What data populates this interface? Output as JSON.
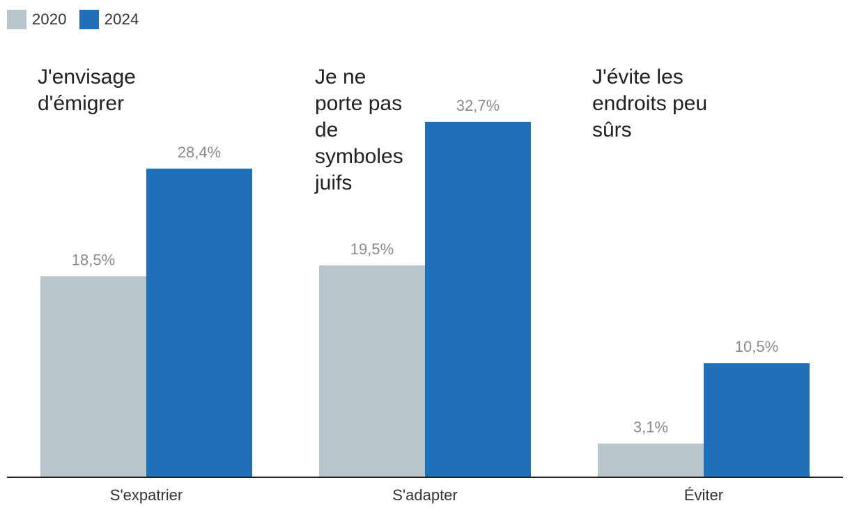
{
  "legend": {
    "items": [
      {
        "label": "2020",
        "color": "#b8c5ca"
      },
      {
        "label": "2024",
        "color": "#206fb9"
      }
    ]
  },
  "chart_data": {
    "type": "bar",
    "categories": [
      "S'expatrier",
      "S'adapter",
      "Éviter"
    ],
    "annotations": [
      "J'envisage\nd'émigrer",
      "Je ne\nporte pas\nde\nsymboles\njuifs",
      "J'évite les\nendroits peu\nsûrs"
    ],
    "series": [
      {
        "name": "2020",
        "color": "#b8c5ca",
        "values": [
          18.5,
          19.5,
          3.1
        ],
        "labels": [
          "18,5%",
          "19,5%",
          "3,1%"
        ]
      },
      {
        "name": "2024",
        "color": "#206fb9",
        "values": [
          28.4,
          32.7,
          10.5
        ],
        "labels": [
          "28,4%",
          "32,7%",
          "10,5%"
        ]
      }
    ],
    "ylim": [
      0,
      37.5
    ],
    "grid": false,
    "legend_position": "top-left"
  }
}
